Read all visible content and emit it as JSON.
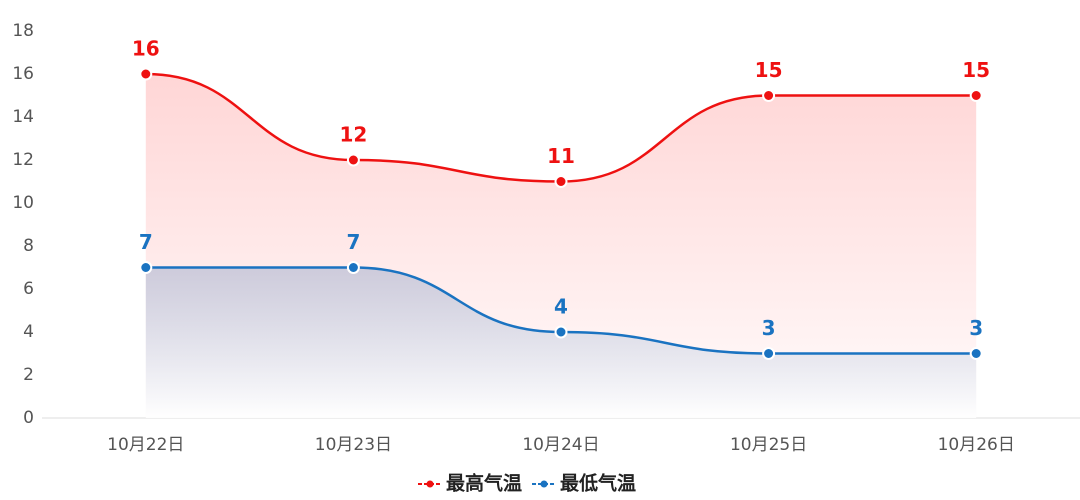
{
  "chart_data": {
    "type": "line",
    "categories": [
      "10月22日",
      "10月23日",
      "10月24日",
      "10月25日",
      "10月26日"
    ],
    "series": [
      {
        "name": "最高气温",
        "color": "#ee1111",
        "values": [
          16,
          12,
          11,
          15,
          15
        ]
      },
      {
        "name": "最低气温",
        "color": "#1a73c1",
        "values": [
          7,
          7,
          4,
          3,
          3
        ]
      }
    ],
    "ylim": [
      0,
      18
    ],
    "yticks": [
      0,
      2,
      4,
      6,
      8,
      10,
      12,
      14,
      16,
      18
    ]
  }
}
